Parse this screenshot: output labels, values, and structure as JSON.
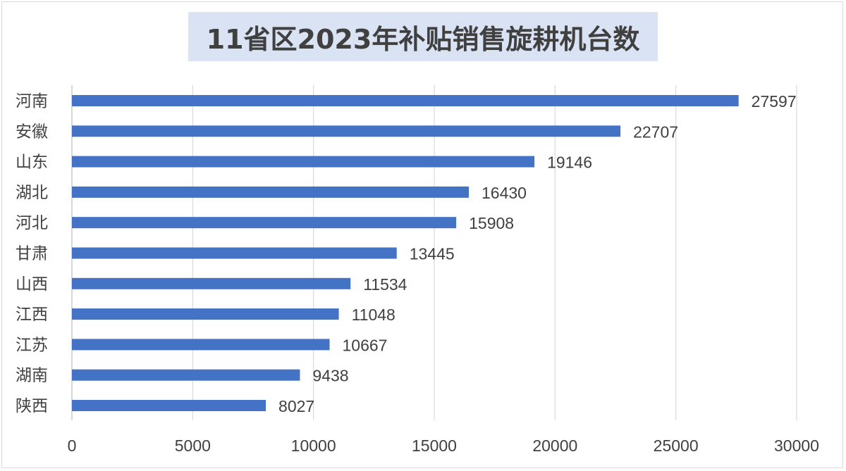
{
  "chart_data": {
    "type": "bar",
    "orientation": "horizontal",
    "title": "11省区2023年补贴销售旋耕机台数",
    "categories": [
      "河南",
      "安徽",
      "山东",
      "湖北",
      "河北",
      "甘肃",
      "山西",
      "江西",
      "江苏",
      "湖南",
      "陕西"
    ],
    "values": [
      27597,
      22707,
      19146,
      16430,
      15908,
      13445,
      11534,
      11048,
      10667,
      9438,
      8027
    ],
    "xlim": [
      0,
      30000
    ],
    "xticks": [
      0,
      5000,
      10000,
      15000,
      20000,
      25000,
      30000
    ],
    "grid": "vertical",
    "legend": "none",
    "data_labels": true,
    "bar_color": "#4472c4",
    "title_background": "#dae3f3"
  }
}
